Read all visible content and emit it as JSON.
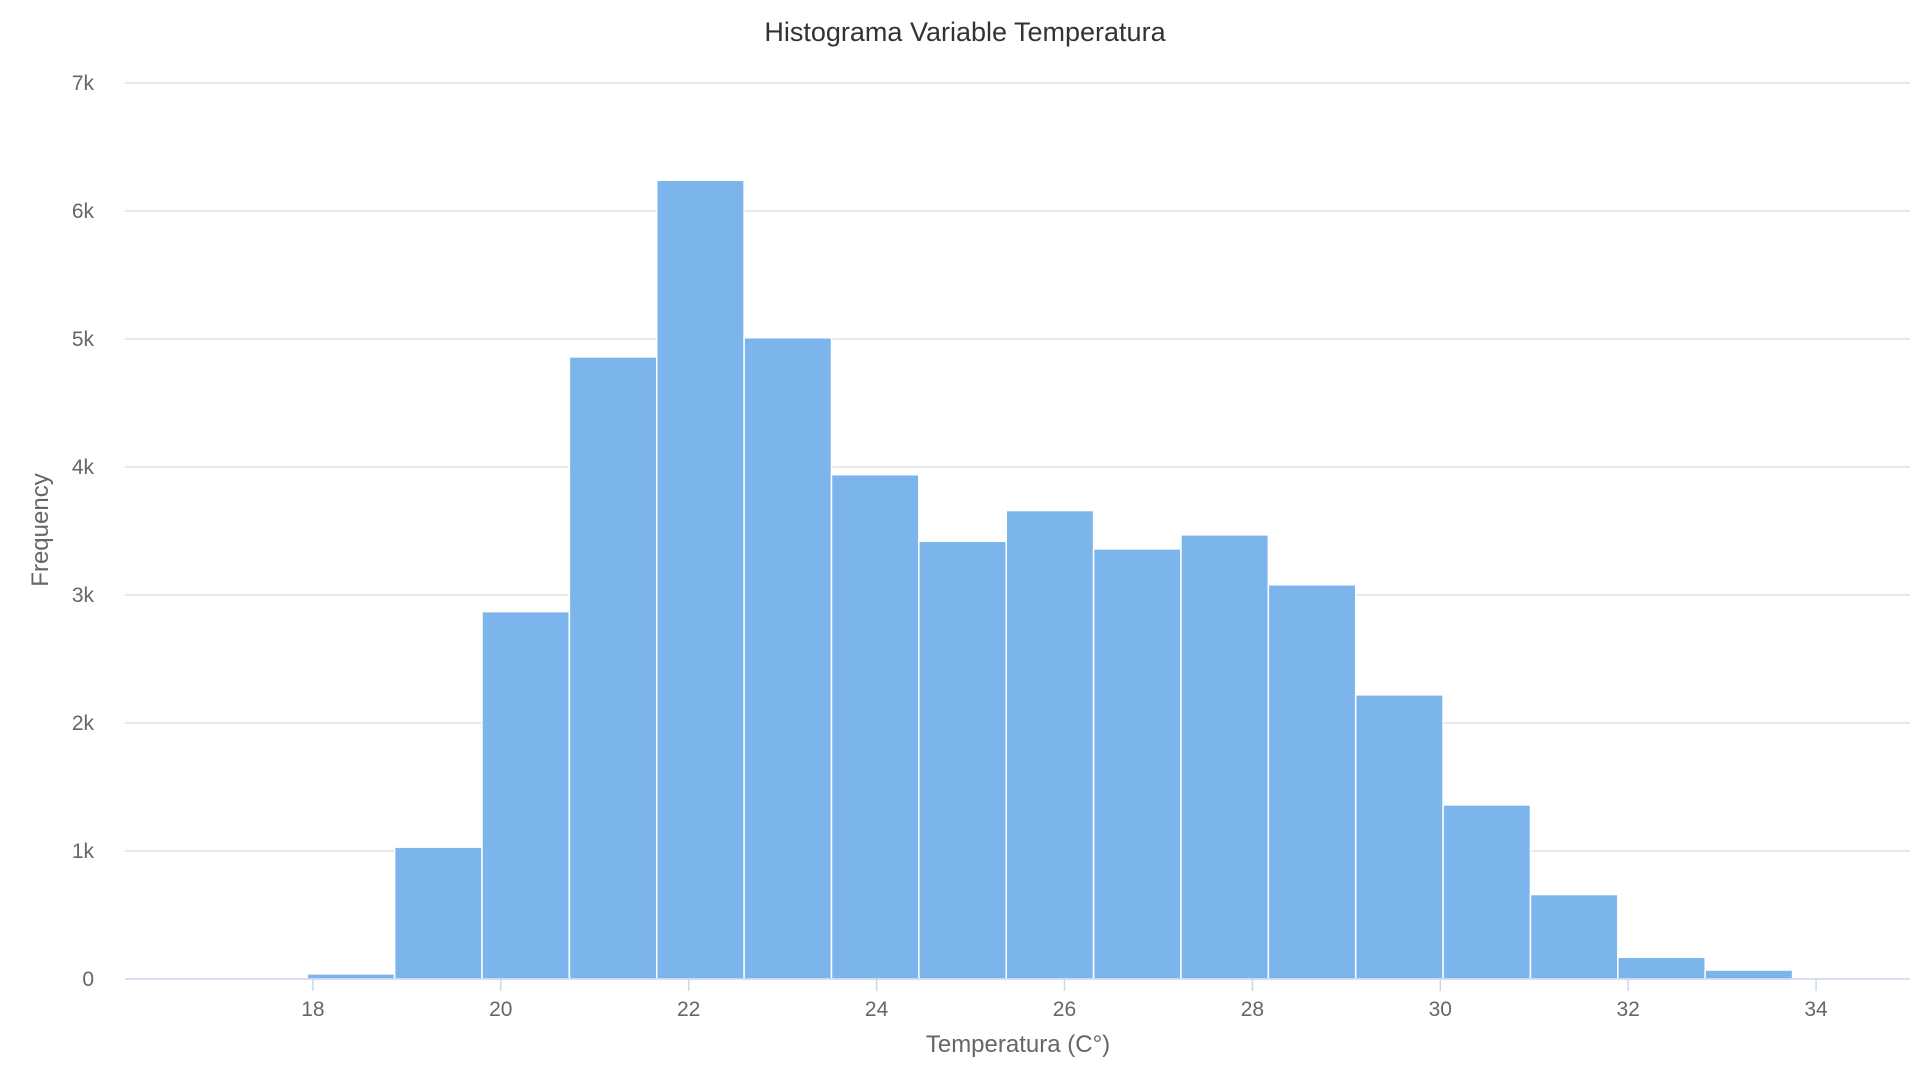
{
  "chart_data": {
    "type": "bar",
    "subtype": "histogram",
    "title": "Histograma Variable Temperatura",
    "xlabel": "Temperatura (C°)",
    "ylabel": "Frequency",
    "xlim": [
      16.0,
      35.0
    ],
    "ylim": [
      0,
      7000
    ],
    "x_ticks": [
      18,
      20,
      22,
      24,
      26,
      28,
      30,
      32,
      34
    ],
    "y_ticks": [
      0,
      1000,
      2000,
      3000,
      4000,
      5000,
      6000,
      7000
    ],
    "y_tick_labels": [
      "0",
      "1k",
      "2k",
      "3k",
      "4k",
      "5k",
      "6k",
      "7k"
    ],
    "grid": true,
    "bin_edges": [
      17.94,
      18.87,
      19.8,
      20.73,
      21.66,
      22.59,
      23.52,
      24.45,
      25.38,
      26.31,
      27.24,
      28.17,
      29.1,
      30.03,
      30.96,
      31.89,
      32.82,
      33.75
    ],
    "values": [
      40,
      1030,
      2870,
      4860,
      6240,
      5010,
      3940,
      3420,
      3660,
      3360,
      3470,
      3080,
      2220,
      1360,
      660,
      170,
      70
    ],
    "color": "#7cb5ec"
  }
}
